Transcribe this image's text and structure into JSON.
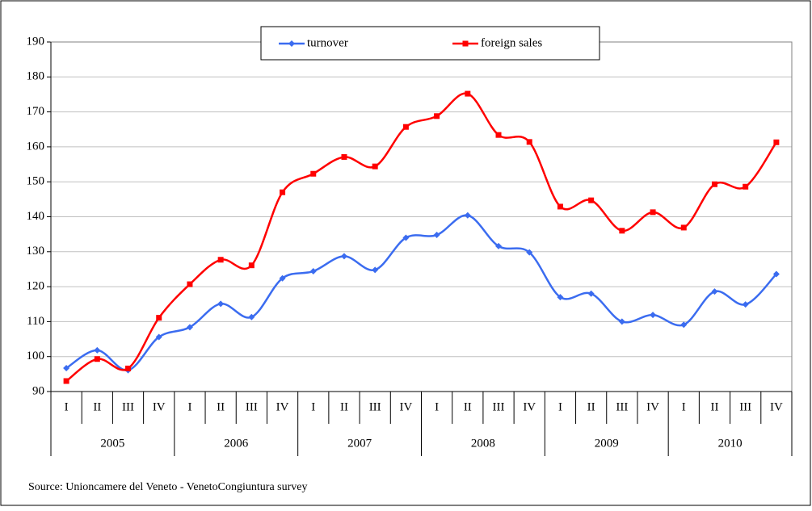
{
  "chart_data": {
    "type": "line",
    "categories": [
      "I",
      "II",
      "III",
      "IV",
      "I",
      "II",
      "III",
      "IV",
      "I",
      "II",
      "III",
      "IV",
      "I",
      "II",
      "III",
      "IV",
      "I",
      "II",
      "III",
      "IV",
      "I",
      "II",
      "III",
      "IV"
    ],
    "groups": [
      "2005",
      "2006",
      "2007",
      "2008",
      "2009",
      "2010"
    ],
    "series": [
      {
        "name": "turnover",
        "color": "#3b6cf0",
        "marker": "diamond",
        "values": [
          96.7,
          101.8,
          96.1,
          105.6,
          108.4,
          115.1,
          111.3,
          122.4,
          124.4,
          128.7,
          124.8,
          134,
          134.8,
          140.4,
          131.6,
          129.8,
          117,
          118,
          110,
          111.9,
          109.1,
          118.6,
          114.9,
          123.6
        ]
      },
      {
        "name": "foreign sales",
        "color": "#ff0000",
        "marker": "square",
        "values": [
          93,
          99.3,
          96.6,
          111.1,
          120.7,
          127.7,
          126.1,
          147,
          152.3,
          157.1,
          154.4,
          165.7,
          168.8,
          175.2,
          163.4,
          161.4,
          142.9,
          144.7,
          136,
          141.3,
          136.9,
          149.3,
          148.6,
          161.3
        ]
      }
    ],
    "ylim": [
      90,
      190
    ],
    "yticks": [
      90,
      100,
      110,
      120,
      130,
      140,
      150,
      160,
      170,
      180,
      190
    ],
    "grid": true,
    "legend": "top",
    "source": "Source: Unioncamere del Veneto - VenetoCongiuntura survey"
  }
}
